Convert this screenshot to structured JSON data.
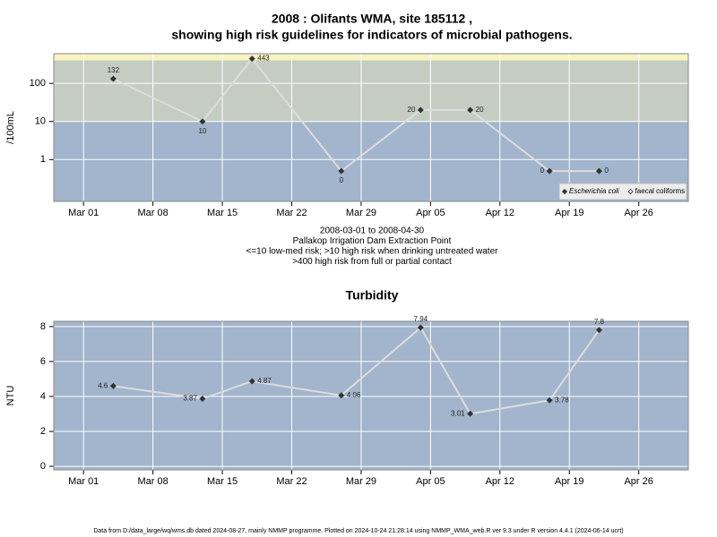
{
  "chart_data": [
    {
      "type": "line",
      "title": "2008 : Olifants WMA, site 185112 ,",
      "subtitle": "showing high risk guidelines for indicators of microbial pathogens.",
      "y_label": "/100mL",
      "log_y": true,
      "x": [
        "2008-03-04",
        "2008-03-13",
        "2008-03-18",
        "2008-03-27",
        "2008-04-04",
        "2008-04-09",
        "2008-04-17",
        "2008-04-22"
      ],
      "series": [
        {
          "name": "Escherichia coli",
          "color": "#333333",
          "line_color": "#dddddd",
          "values": [
            132,
            10,
            443,
            0.5,
            20,
            20,
            0.5,
            0.5
          ],
          "value_labels": [
            "132",
            "10",
            "443",
            "0",
            "20",
            "20",
            "0",
            "0"
          ]
        },
        {
          "name": "faecal coliforms",
          "color": "#333333",
          "line_color": "#dddddd",
          "values": [
            null,
            null,
            null,
            null,
            null,
            null,
            null,
            null
          ]
        }
      ],
      "thresholds": [
        10,
        400
      ],
      "band_colors": [
        "#a2b5cc",
        "#c5cdc2",
        "#f8f4c0"
      ],
      "xlim": [
        "2008-02-27",
        "2008-05-01"
      ],
      "xticks": [
        {
          "value": "2008-03-01",
          "label": "Mar 01"
        },
        {
          "value": "2008-03-08",
          "label": "Mar 08"
        },
        {
          "value": "2008-03-15",
          "label": "Mar 15"
        },
        {
          "value": "2008-03-22",
          "label": "Mar 22"
        },
        {
          "value": "2008-03-29",
          "label": "Mar 29"
        },
        {
          "value": "2008-04-05",
          "label": "Apr 05"
        },
        {
          "value": "2008-04-12",
          "label": "Apr 12"
        },
        {
          "value": "2008-04-19",
          "label": "Apr 19"
        },
        {
          "value": "2008-04-26",
          "label": "Apr 26"
        }
      ],
      "ylim": [
        0.08,
        600
      ],
      "yticks": [
        1,
        10,
        100
      ],
      "grid": true,
      "legend": "bottom right",
      "notes": [
        "2008-03-01 to 2008-04-30",
        "Pallakop Irrigation Dam Extraction Point",
        "<=10 low-med risk; >10 high risk when drinking untreated water",
        ">400 high risk from full or partial contact"
      ]
    },
    {
      "type": "line",
      "title": "Turbidity",
      "y_label": "NTU",
      "log_y": false,
      "x": [
        "2008-03-04",
        "2008-03-13",
        "2008-03-18",
        "2008-03-27",
        "2008-04-04",
        "2008-04-09",
        "2008-04-17",
        "2008-04-22"
      ],
      "series": [
        {
          "color": "#333333",
          "line_color": "#dddddd",
          "values": [
            4.6,
            3.87,
            4.87,
            4.06,
            7.94,
            3.01,
            3.78,
            7.8
          ]
        }
      ],
      "band_colors": [
        "#a2b5cc"
      ],
      "xlim": [
        "2008-02-27",
        "2008-05-01"
      ],
      "xticks": [
        {
          "value": "2008-03-01",
          "label": "Mar 01"
        },
        {
          "value": "2008-03-08",
          "label": "Mar 08"
        },
        {
          "value": "2008-03-15",
          "label": "Mar 15"
        },
        {
          "value": "2008-03-22",
          "label": "Mar 22"
        },
        {
          "value": "2008-03-29",
          "label": "Mar 29"
        },
        {
          "value": "2008-04-05",
          "label": "Apr 05"
        },
        {
          "value": "2008-04-12",
          "label": "Apr 12"
        },
        {
          "value": "2008-04-19",
          "label": "Apr 19"
        },
        {
          "value": "2008-04-26",
          "label": "Apr 26"
        }
      ],
      "ylim": [
        -0.2,
        8.3
      ],
      "yticks": [
        0,
        2,
        4,
        6,
        8
      ],
      "grid": true
    }
  ],
  "footer": "Data from D:/data_large/wq/wms.db dated 2024-08-27, mainly NMMP programme. Plotted on 2024-10-24 21:28:14 using NMMP_WMA_web.R ver 9.3 under R version 4.4.1 (2024-06-14 ucrt)"
}
